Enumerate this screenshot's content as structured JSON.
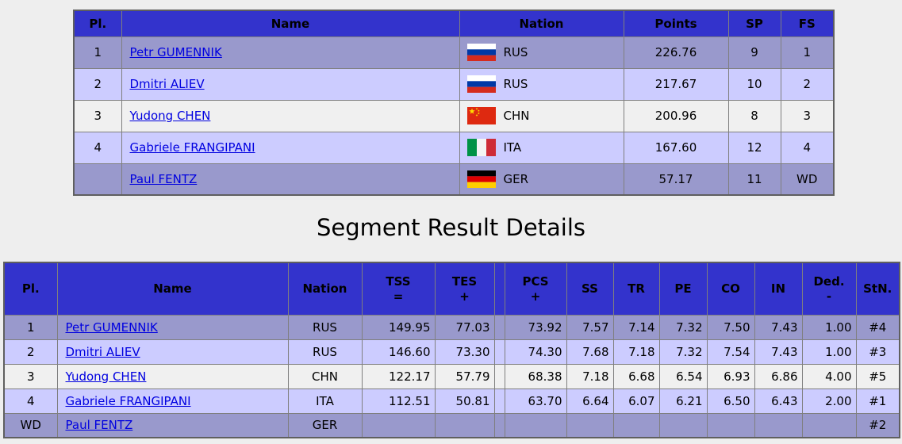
{
  "section_title": "Segment Result Details",
  "colors": {
    "header_bg": "#3333cc",
    "row_dark": "#9999cc",
    "row_light": "#ccccff",
    "row_white": "#f0f0f0",
    "link": "#0000e0",
    "page_bg": "#eeeeee"
  },
  "overall_table": {
    "columns": [
      "Pl.",
      "Name",
      "Nation",
      "Points",
      "SP",
      "FS"
    ],
    "rows": [
      {
        "pl": "1",
        "name": "Petr GUMENNIK",
        "flag": "rus",
        "nation": "RUS",
        "points": "226.76",
        "sp": "9",
        "fs": "1",
        "shade": "dark"
      },
      {
        "pl": "2",
        "name": "Dmitri ALIEV",
        "flag": "rus",
        "nation": "RUS",
        "points": "217.67",
        "sp": "10",
        "fs": "2",
        "shade": "light"
      },
      {
        "pl": "3",
        "name": "Yudong CHEN",
        "flag": "chn",
        "nation": "CHN",
        "points": "200.96",
        "sp": "8",
        "fs": "3",
        "shade": "white"
      },
      {
        "pl": "4",
        "name": "Gabriele FRANGIPANI",
        "flag": "ita",
        "nation": "ITA",
        "points": "167.60",
        "sp": "12",
        "fs": "4",
        "shade": "light"
      },
      {
        "pl": "",
        "name": "Paul FENTZ",
        "flag": "ger",
        "nation": "GER",
        "points": "57.17",
        "sp": "11",
        "fs": "WD",
        "shade": "dark"
      }
    ]
  },
  "details_table": {
    "columns": [
      {
        "label": "Pl.",
        "sub": ""
      },
      {
        "label": "Name",
        "sub": ""
      },
      {
        "label": "Nation",
        "sub": ""
      },
      {
        "label": "TSS",
        "sub": "="
      },
      {
        "label": "TES",
        "sub": "+"
      },
      {
        "label": "",
        "sub": ""
      },
      {
        "label": "PCS",
        "sub": "+"
      },
      {
        "label": "SS",
        "sub": ""
      },
      {
        "label": "TR",
        "sub": ""
      },
      {
        "label": "PE",
        "sub": ""
      },
      {
        "label": "CO",
        "sub": ""
      },
      {
        "label": "IN",
        "sub": ""
      },
      {
        "label": "Ded.",
        "sub": "-"
      },
      {
        "label": "StN.",
        "sub": ""
      }
    ],
    "rows": [
      {
        "pl": "1",
        "name": "Petr GUMENNIK",
        "nation": "RUS",
        "tss": "149.95",
        "tes": "77.03",
        "sep": "",
        "pcs": "73.92",
        "ss": "7.57",
        "tr": "7.14",
        "pe": "7.32",
        "co": "7.50",
        "in": "7.43",
        "ded": "1.00",
        "stn": "#4",
        "shade": "dark"
      },
      {
        "pl": "2",
        "name": "Dmitri ALIEV",
        "nation": "RUS",
        "tss": "146.60",
        "tes": "73.30",
        "sep": "",
        "pcs": "74.30",
        "ss": "7.68",
        "tr": "7.18",
        "pe": "7.32",
        "co": "7.54",
        "in": "7.43",
        "ded": "1.00",
        "stn": "#3",
        "shade": "light"
      },
      {
        "pl": "3",
        "name": "Yudong CHEN",
        "nation": "CHN",
        "tss": "122.17",
        "tes": "57.79",
        "sep": "",
        "pcs": "68.38",
        "ss": "7.18",
        "tr": "6.68",
        "pe": "6.54",
        "co": "6.93",
        "in": "6.86",
        "ded": "4.00",
        "stn": "#5",
        "shade": "white"
      },
      {
        "pl": "4",
        "name": "Gabriele FRANGIPANI",
        "nation": "ITA",
        "tss": "112.51",
        "tes": "50.81",
        "sep": "",
        "pcs": "63.70",
        "ss": "6.64",
        "tr": "6.07",
        "pe": "6.21",
        "co": "6.50",
        "in": "6.43",
        "ded": "2.00",
        "stn": "#1",
        "shade": "light"
      },
      {
        "pl": "WD",
        "name": "Paul FENTZ",
        "nation": "GER",
        "tss": "",
        "tes": "",
        "sep": "",
        "pcs": "",
        "ss": "",
        "tr": "",
        "pe": "",
        "co": "",
        "in": "",
        "ded": "",
        "stn": "#2",
        "shade": "dark"
      }
    ]
  }
}
